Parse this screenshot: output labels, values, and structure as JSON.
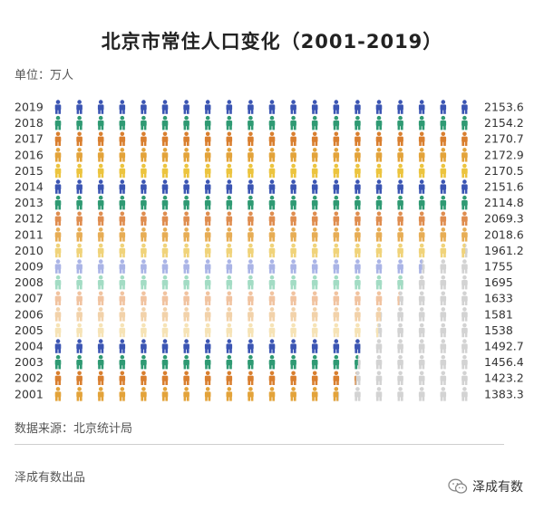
{
  "title": "北京市常住人口变化（2001-2019）",
  "unit": "单位：万人",
  "source": "数据来源：北京统计局",
  "footer": {
    "producer": "泽成有数出品",
    "account": "泽成有数"
  },
  "colors": {
    "empty": "#d3d3d3",
    "rows": {
      "2019": "#3b55b3",
      "2018": "#2f9a73",
      "2017": "#d97f2f",
      "2016": "#e3a33a",
      "2015": "#ecc43e",
      "2014": "#3b55b3",
      "2013": "#2f9a73",
      "2012": "#df8d4f",
      "2011": "#e7ad55",
      "2010": "#f0d37a",
      "2009": "#aab4e6",
      "2008": "#a3dcc4",
      "2007": "#f1c3a0",
      "2006": "#f2d2aa",
      "2005": "#f6e3b6",
      "2004": "#3b55b3",
      "2003": "#2f9a73",
      "2002": "#d97f2f",
      "2001": "#e3a33a"
    }
  },
  "chart_data": {
    "type": "pictogram",
    "title": "北京市常住人口变化（2001-2019）",
    "unit": "万人",
    "icons_per_row": 20,
    "icon_value": 100,
    "categories": [
      "2019",
      "2018",
      "2017",
      "2016",
      "2015",
      "2014",
      "2013",
      "2012",
      "2011",
      "2010",
      "2009",
      "2008",
      "2007",
      "2006",
      "2005",
      "2004",
      "2003",
      "2002",
      "2001"
    ],
    "values": [
      2153.6,
      2154.2,
      2170.7,
      2172.9,
      2170.5,
      2151.6,
      2114.8,
      2069.3,
      2018.6,
      1961.2,
      1755,
      1695,
      1633,
      1581,
      1538,
      1492.7,
      1456.4,
      1423.2,
      1383.3
    ],
    "labels": [
      "2153.6",
      "2154.2",
      "2170.7",
      "2172.9",
      "2170.5",
      "2151.6",
      "2114.8",
      "2069.3",
      "2018.6",
      "1961.2",
      "1755",
      "1695",
      "1633",
      "1581",
      "1538",
      "1492.7",
      "1456.4",
      "1423.2",
      "1383.3"
    ]
  }
}
